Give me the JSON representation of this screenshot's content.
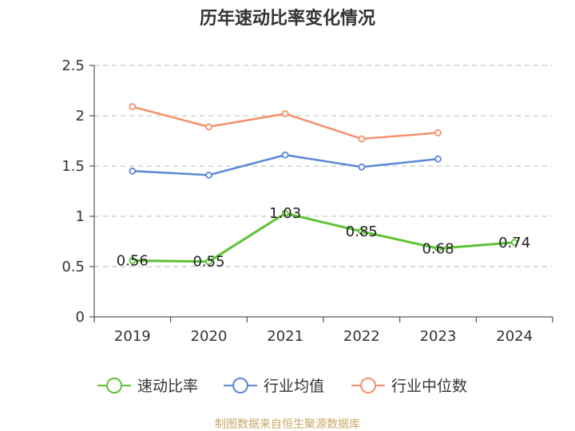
{
  "chart_data": {
    "type": "line",
    "title": "历年速动比率变化情况",
    "categories": [
      "2019",
      "2020",
      "2021",
      "2022",
      "2023",
      "2024"
    ],
    "ylim": [
      0,
      2.5
    ],
    "yticks": [
      "0",
      "0.5",
      "1",
      "1.5",
      "2",
      "2.5"
    ],
    "grid": true,
    "legend_position": "bottom",
    "series": [
      {
        "name": "速动比率",
        "color": "#5cc234",
        "values": [
          0.56,
          0.55,
          1.03,
          0.85,
          0.68,
          0.74
        ],
        "labels": [
          "0.56",
          "0.55",
          "1.03",
          "0.85",
          "0.68",
          "0.74"
        ]
      },
      {
        "name": "行业均值",
        "color": "#5b87d6",
        "values": [
          1.45,
          1.41,
          1.61,
          1.49,
          1.57,
          null
        ]
      },
      {
        "name": "行业中位数",
        "color": "#f5906a",
        "values": [
          2.09,
          1.89,
          2.02,
          1.77,
          1.83,
          null
        ]
      }
    ],
    "source": "制图数据来自恒生聚源数据库"
  }
}
